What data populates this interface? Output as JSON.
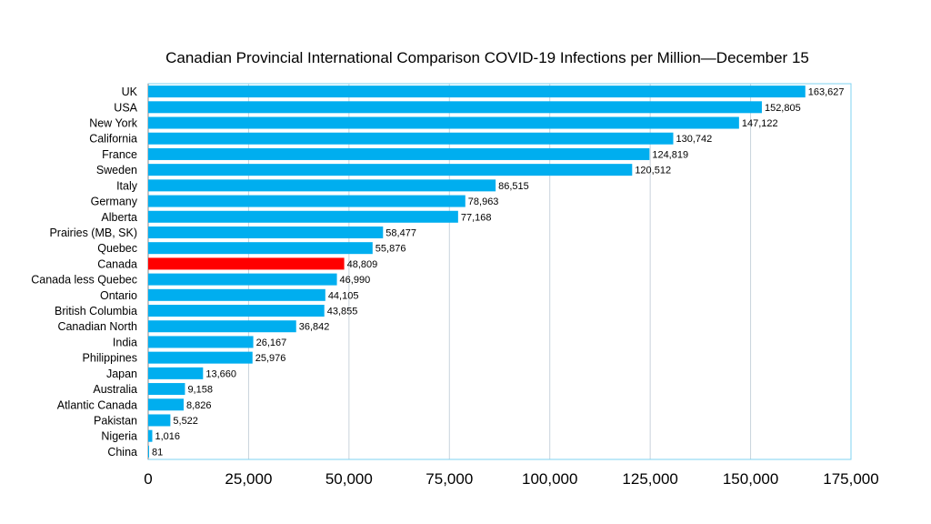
{
  "chart_data": {
    "type": "bar",
    "orientation": "horizontal",
    "title": "Canadian Provincial International Comparison COVID-19 Infections per Million—December 15",
    "xlabel": "",
    "ylabel": "",
    "xlim": [
      0,
      175000
    ],
    "x_ticks": [
      "0",
      "25,000",
      "50,000",
      "75,000",
      "100,000",
      "125,000",
      "150,000",
      "175,000"
    ],
    "grid": "vertical",
    "legend": "none",
    "colors": {
      "default": "#00AEEF",
      "highlight": "#FF0000",
      "grid": "#C8D3DC",
      "border": "#7FD3F2"
    },
    "highlight": "Canada",
    "categories": [
      "UK",
      "USA",
      "New York",
      "California",
      "France",
      "Sweden",
      "Italy",
      "Germany",
      "Alberta",
      "Prairies (MB, SK)",
      "Quebec",
      "Canada",
      "Canada less Quebec",
      "Ontario",
      "British Columbia",
      "Canadian North",
      "India",
      "Philippines",
      "Japan",
      "Australia",
      "Atlantic Canada",
      "Pakistan",
      "Nigeria",
      "China"
    ],
    "values": [
      163627,
      152805,
      147122,
      130742,
      124819,
      120512,
      86515,
      78963,
      77168,
      58477,
      55876,
      48809,
      46990,
      44105,
      43855,
      36842,
      26167,
      25976,
      13660,
      9158,
      8826,
      5522,
      1016,
      81
    ],
    "data_labels": [
      "163,627",
      "152,805",
      "147,122",
      "130,742",
      "124,819",
      "120,512",
      "86,515",
      "78,963",
      "77,168",
      "58,477",
      "55,876",
      "48,809",
      "46,990",
      "44,105",
      "43,855",
      "36,842",
      "26,167",
      "25,976",
      "13,660",
      "9,158",
      "8,826",
      "5,522",
      "1,016",
      "81"
    ]
  }
}
